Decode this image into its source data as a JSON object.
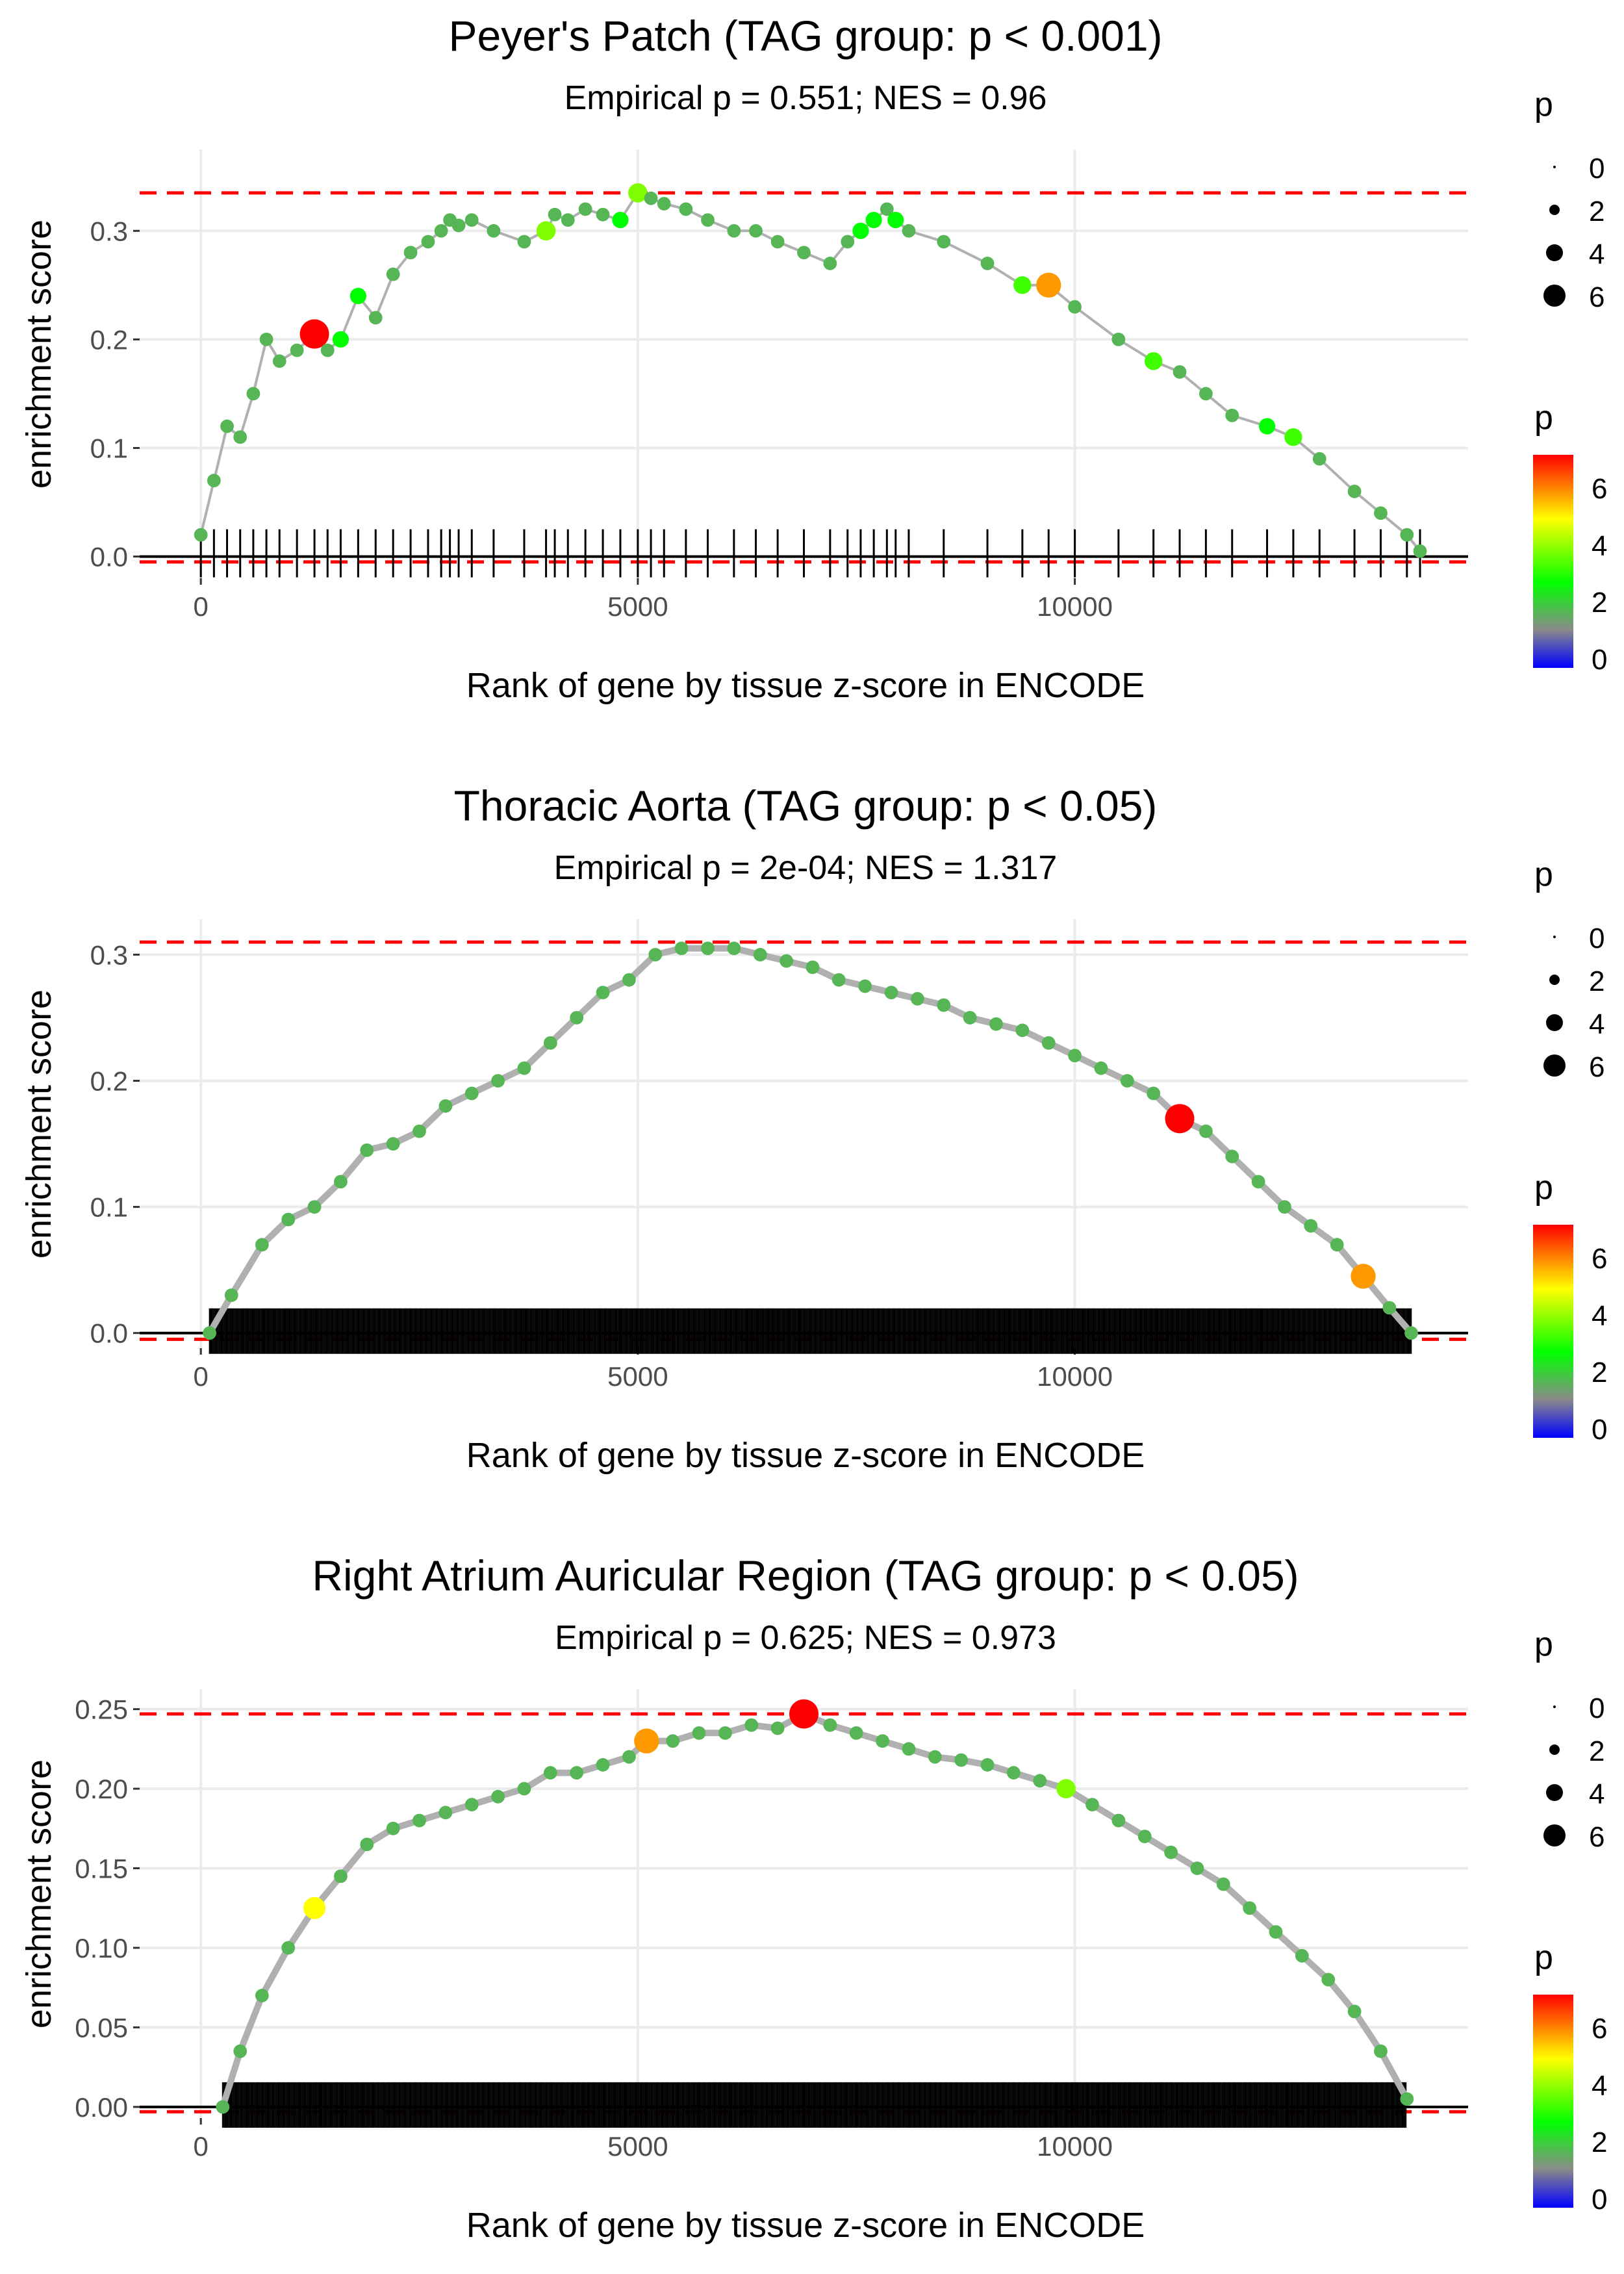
{
  "chart_data": [
    {
      "type": "line",
      "title": "Peyer's Patch (TAG group: p < 0.001)",
      "subtitle": "Empirical p = 0.551; NES = 0.96",
      "xlabel": "Rank of gene by tissue z-score in ENCODE",
      "ylabel": "enrichment score",
      "xlim": [
        -700,
        14500
      ],
      "ylim": [
        -0.02,
        0.375
      ],
      "xticks": [
        0,
        5000,
        10000
      ],
      "xtick_labels": [
        "0",
        "5000",
        "10000"
      ],
      "yticks": [
        0,
        0.1,
        0.2,
        0.3
      ],
      "ytick_labels": [
        "0.0",
        "0.1",
        "0.2",
        "0.3"
      ],
      "max_es": 0.335,
      "min_es": -0.005,
      "x": [
        0,
        150,
        300,
        450,
        600,
        750,
        900,
        1100,
        1300,
        1450,
        1600,
        1800,
        2000,
        2200,
        2400,
        2600,
        2750,
        2850,
        2950,
        3100,
        3350,
        3700,
        3950,
        4050,
        4200,
        4400,
        4600,
        4800,
        5000,
        5150,
        5300,
        5550,
        5800,
        6100,
        6350,
        6600,
        6900,
        7200,
        7400,
        7550,
        7700,
        7850,
        7950,
        8100,
        8500,
        9000,
        9400,
        9700,
        10000,
        10500,
        10900,
        11200,
        11500,
        11800,
        12200,
        12500,
        12800,
        13200,
        13500,
        13800,
        13950
      ],
      "y": [
        0.02,
        0.07,
        0.12,
        0.11,
        0.15,
        0.2,
        0.18,
        0.19,
        0.205,
        0.19,
        0.2,
        0.24,
        0.22,
        0.26,
        0.28,
        0.29,
        0.3,
        0.31,
        0.305,
        0.31,
        0.3,
        0.29,
        0.3,
        0.315,
        0.31,
        0.32,
        0.315,
        0.31,
        0.335,
        0.33,
        0.325,
        0.32,
        0.31,
        0.3,
        0.3,
        0.29,
        0.28,
        0.27,
        0.29,
        0.3,
        0.31,
        0.32,
        0.31,
        0.3,
        0.29,
        0.27,
        0.25,
        0.25,
        0.23,
        0.2,
        0.18,
        0.17,
        0.15,
        0.13,
        0.12,
        0.11,
        0.09,
        0.06,
        0.04,
        0.02,
        0.005
      ],
      "p": [
        2,
        2,
        2,
        2,
        2,
        2,
        2,
        2,
        7.5,
        2,
        3,
        3,
        2,
        2,
        2,
        2,
        2,
        2,
        2,
        2,
        2,
        2,
        4,
        2,
        2,
        2,
        2,
        3,
        4,
        2,
        2,
        2,
        2,
        2,
        2,
        2,
        2,
        2,
        2,
        3,
        3,
        2,
        3,
        2,
        2,
        2,
        3.5,
        6,
        2,
        2,
        3.5,
        2,
        2,
        2,
        3,
        3.5,
        2,
        2,
        2,
        2,
        2
      ],
      "gene_ranks": [
        0,
        150,
        300,
        450,
        600,
        750,
        900,
        1100,
        1300,
        1450,
        1600,
        1800,
        2000,
        2200,
        2400,
        2600,
        2750,
        2850,
        2950,
        3100,
        3350,
        3700,
        3950,
        4050,
        4200,
        4400,
        4600,
        4800,
        5000,
        5150,
        5300,
        5550,
        5800,
        6100,
        6350,
        6600,
        6900,
        7200,
        7400,
        7550,
        7700,
        7850,
        7950,
        8100,
        8500,
        9000,
        9400,
        9700,
        10000,
        10500,
        10900,
        11200,
        11500,
        11800,
        12200,
        12500,
        12800,
        13200,
        13500,
        13800,
        13950
      ],
      "legend": {
        "size_title": "p",
        "size_labels": [
          "0",
          "2",
          "4",
          "6"
        ],
        "color_title": "p",
        "color_labels": [
          "0",
          "2",
          "4",
          "6"
        ]
      }
    },
    {
      "type": "line",
      "title": "Thoracic Aorta (TAG group: p < 0.05)",
      "subtitle": "Empirical p = 2e-04; NES = 1.317",
      "xlabel": "Rank of gene by tissue z-score in ENCODE",
      "ylabel": "enrichment score",
      "xlim": [
        -700,
        14500
      ],
      "ylim": [
        -0.012,
        0.328
      ],
      "xticks": [
        0,
        5000,
        10000
      ],
      "xtick_labels": [
        "0",
        "5000",
        "10000"
      ],
      "yticks": [
        0,
        0.1,
        0.2,
        0.3
      ],
      "ytick_labels": [
        "0.0",
        "0.1",
        "0.2",
        "0.3"
      ],
      "max_es": 0.31,
      "min_es": -0.005,
      "x": [
        100,
        350,
        700,
        1000,
        1300,
        1600,
        1900,
        2200,
        2500,
        2800,
        3100,
        3400,
        3700,
        4000,
        4300,
        4600,
        4900,
        5200,
        5500,
        5800,
        6100,
        6400,
        6700,
        7000,
        7300,
        7600,
        7900,
        8200,
        8500,
        8800,
        9100,
        9400,
        9700,
        10000,
        10300,
        10600,
        10900,
        11200,
        11500,
        11800,
        12100,
        12400,
        12700,
        13000,
        13300,
        13600,
        13850
      ],
      "y": [
        0.0,
        0.03,
        0.07,
        0.09,
        0.1,
        0.12,
        0.145,
        0.15,
        0.16,
        0.18,
        0.19,
        0.2,
        0.21,
        0.23,
        0.25,
        0.27,
        0.28,
        0.3,
        0.305,
        0.305,
        0.305,
        0.3,
        0.295,
        0.29,
        0.28,
        0.275,
        0.27,
        0.265,
        0.26,
        0.25,
        0.245,
        0.24,
        0.23,
        0.22,
        0.21,
        0.2,
        0.19,
        0.17,
        0.16,
        0.14,
        0.12,
        0.1,
        0.085,
        0.07,
        0.045,
        0.02,
        0.0
      ],
      "p": [
        2,
        2,
        2,
        2,
        2,
        2,
        2,
        2,
        2,
        2,
        2,
        2,
        2,
        2,
        2,
        2,
        2,
        2,
        2,
        2,
        2,
        2,
        2,
        2,
        2,
        2,
        2,
        2,
        2,
        2,
        2,
        2,
        2,
        2,
        2,
        2,
        2,
        7.5,
        2,
        2,
        2,
        2,
        2,
        2,
        6,
        2,
        2
      ],
      "legend": {
        "size_title": "p",
        "size_labels": [
          "0",
          "2",
          "4",
          "6"
        ],
        "color_title": "p",
        "color_labels": [
          "0",
          "2",
          "4",
          "6"
        ]
      }
    },
    {
      "type": "line",
      "title": "Right Atrium Auricular Region (TAG group: p < 0.05)",
      "subtitle": "Empirical p = 0.625; NES = 0.973",
      "xlabel": "Rank of gene by tissue z-score in ENCODE",
      "ylabel": "enrichment score",
      "xlim": [
        -700,
        14500
      ],
      "ylim": [
        -0.007,
        0.2625
      ],
      "xticks": [
        0,
        5000,
        10000
      ],
      "xtick_labels": [
        "0",
        "5000",
        "10000"
      ],
      "yticks": [
        0,
        0.05,
        0.1,
        0.15,
        0.2,
        0.25
      ],
      "ytick_labels": [
        "0.00",
        "0.05",
        "0.10",
        "0.15",
        "0.20",
        "0.25"
      ],
      "max_es": 0.247,
      "min_es": -0.003,
      "x": [
        250,
        450,
        700,
        1000,
        1300,
        1600,
        1900,
        2200,
        2500,
        2800,
        3100,
        3400,
        3700,
        4000,
        4300,
        4600,
        4900,
        5100,
        5400,
        5700,
        6000,
        6300,
        6600,
        6900,
        7200,
        7500,
        7800,
        8100,
        8400,
        8700,
        9000,
        9300,
        9600,
        9900,
        10200,
        10500,
        10800,
        11100,
        11400,
        11700,
        12000,
        12300,
        12600,
        12900,
        13200,
        13500,
        13800
      ],
      "y": [
        0.0,
        0.035,
        0.07,
        0.1,
        0.125,
        0.145,
        0.165,
        0.175,
        0.18,
        0.185,
        0.19,
        0.195,
        0.2,
        0.21,
        0.21,
        0.215,
        0.22,
        0.23,
        0.23,
        0.235,
        0.235,
        0.24,
        0.238,
        0.247,
        0.24,
        0.235,
        0.23,
        0.225,
        0.22,
        0.218,
        0.215,
        0.21,
        0.205,
        0.2,
        0.19,
        0.18,
        0.17,
        0.16,
        0.15,
        0.14,
        0.125,
        0.11,
        0.095,
        0.08,
        0.06,
        0.035,
        0.005
      ],
      "p": [
        2,
        2,
        2,
        2,
        5,
        2,
        2,
        2,
        2,
        2,
        2,
        2,
        2,
        2,
        2,
        2,
        2,
        6,
        2,
        2,
        2,
        2,
        2,
        7.5,
        2,
        2,
        2,
        2,
        2,
        2,
        2,
        2,
        2,
        4,
        2,
        2,
        2,
        2,
        2,
        2,
        2,
        2,
        2,
        2,
        2,
        2,
        2
      ],
      "legend": {
        "size_title": "p",
        "size_labels": [
          "0",
          "2",
          "4",
          "6"
        ],
        "color_title": "p",
        "color_labels": [
          "0",
          "2",
          "4",
          "6"
        ]
      }
    }
  ],
  "colors": {
    "gridline": "#ebebeb",
    "baseline": "#000000",
    "threshold": "#ff0000",
    "curve": "#b0b0b0",
    "scale": [
      "#0000ff",
      "#8a8a8a",
      "#00ff00",
      "#ffff00",
      "#ff0000"
    ]
  }
}
